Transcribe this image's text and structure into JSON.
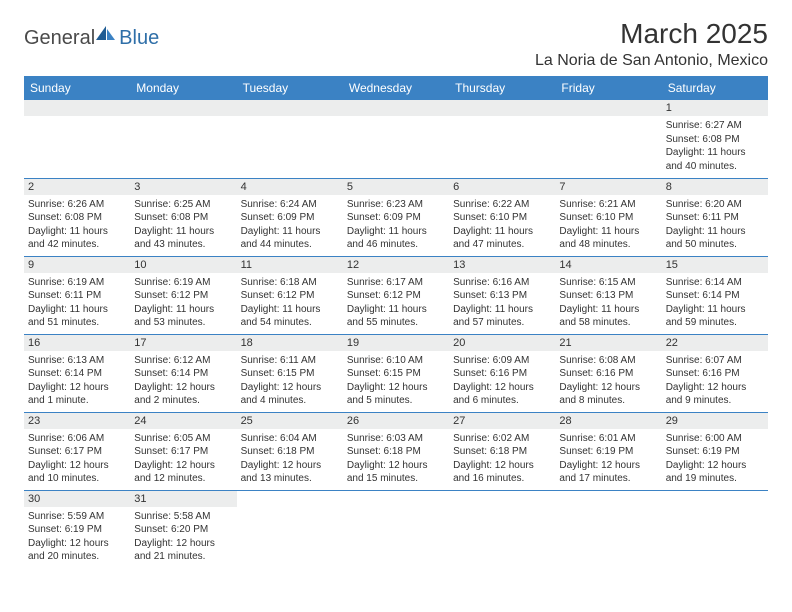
{
  "logo": {
    "general": "General",
    "blue": "Blue",
    "accent_color": "#2f6fa8",
    "sail_color": "#1f5c94"
  },
  "header": {
    "month": "March 2025",
    "location": "La Noria de San Antonio, Mexico"
  },
  "style": {
    "header_bg": "#3b82c4",
    "header_text": "#ffffff",
    "daynum_bg": "#eceded",
    "border_color": "#3b82c4"
  },
  "weekdays": [
    "Sunday",
    "Monday",
    "Tuesday",
    "Wednesday",
    "Thursday",
    "Friday",
    "Saturday"
  ],
  "days": {
    "1": {
      "sunrise": "Sunrise: 6:27 AM",
      "sunset": "Sunset: 6:08 PM",
      "daylight": "Daylight: 11 hours and 40 minutes."
    },
    "2": {
      "sunrise": "Sunrise: 6:26 AM",
      "sunset": "Sunset: 6:08 PM",
      "daylight": "Daylight: 11 hours and 42 minutes."
    },
    "3": {
      "sunrise": "Sunrise: 6:25 AM",
      "sunset": "Sunset: 6:08 PM",
      "daylight": "Daylight: 11 hours and 43 minutes."
    },
    "4": {
      "sunrise": "Sunrise: 6:24 AM",
      "sunset": "Sunset: 6:09 PM",
      "daylight": "Daylight: 11 hours and 44 minutes."
    },
    "5": {
      "sunrise": "Sunrise: 6:23 AM",
      "sunset": "Sunset: 6:09 PM",
      "daylight": "Daylight: 11 hours and 46 minutes."
    },
    "6": {
      "sunrise": "Sunrise: 6:22 AM",
      "sunset": "Sunset: 6:10 PM",
      "daylight": "Daylight: 11 hours and 47 minutes."
    },
    "7": {
      "sunrise": "Sunrise: 6:21 AM",
      "sunset": "Sunset: 6:10 PM",
      "daylight": "Daylight: 11 hours and 48 minutes."
    },
    "8": {
      "sunrise": "Sunrise: 6:20 AM",
      "sunset": "Sunset: 6:11 PM",
      "daylight": "Daylight: 11 hours and 50 minutes."
    },
    "9": {
      "sunrise": "Sunrise: 6:19 AM",
      "sunset": "Sunset: 6:11 PM",
      "daylight": "Daylight: 11 hours and 51 minutes."
    },
    "10": {
      "sunrise": "Sunrise: 6:19 AM",
      "sunset": "Sunset: 6:12 PM",
      "daylight": "Daylight: 11 hours and 53 minutes."
    },
    "11": {
      "sunrise": "Sunrise: 6:18 AM",
      "sunset": "Sunset: 6:12 PM",
      "daylight": "Daylight: 11 hours and 54 minutes."
    },
    "12": {
      "sunrise": "Sunrise: 6:17 AM",
      "sunset": "Sunset: 6:12 PM",
      "daylight": "Daylight: 11 hours and 55 minutes."
    },
    "13": {
      "sunrise": "Sunrise: 6:16 AM",
      "sunset": "Sunset: 6:13 PM",
      "daylight": "Daylight: 11 hours and 57 minutes."
    },
    "14": {
      "sunrise": "Sunrise: 6:15 AM",
      "sunset": "Sunset: 6:13 PM",
      "daylight": "Daylight: 11 hours and 58 minutes."
    },
    "15": {
      "sunrise": "Sunrise: 6:14 AM",
      "sunset": "Sunset: 6:14 PM",
      "daylight": "Daylight: 11 hours and 59 minutes."
    },
    "16": {
      "sunrise": "Sunrise: 6:13 AM",
      "sunset": "Sunset: 6:14 PM",
      "daylight": "Daylight: 12 hours and 1 minute."
    },
    "17": {
      "sunrise": "Sunrise: 6:12 AM",
      "sunset": "Sunset: 6:14 PM",
      "daylight": "Daylight: 12 hours and 2 minutes."
    },
    "18": {
      "sunrise": "Sunrise: 6:11 AM",
      "sunset": "Sunset: 6:15 PM",
      "daylight": "Daylight: 12 hours and 4 minutes."
    },
    "19": {
      "sunrise": "Sunrise: 6:10 AM",
      "sunset": "Sunset: 6:15 PM",
      "daylight": "Daylight: 12 hours and 5 minutes."
    },
    "20": {
      "sunrise": "Sunrise: 6:09 AM",
      "sunset": "Sunset: 6:16 PM",
      "daylight": "Daylight: 12 hours and 6 minutes."
    },
    "21": {
      "sunrise": "Sunrise: 6:08 AM",
      "sunset": "Sunset: 6:16 PM",
      "daylight": "Daylight: 12 hours and 8 minutes."
    },
    "22": {
      "sunrise": "Sunrise: 6:07 AM",
      "sunset": "Sunset: 6:16 PM",
      "daylight": "Daylight: 12 hours and 9 minutes."
    },
    "23": {
      "sunrise": "Sunrise: 6:06 AM",
      "sunset": "Sunset: 6:17 PM",
      "daylight": "Daylight: 12 hours and 10 minutes."
    },
    "24": {
      "sunrise": "Sunrise: 6:05 AM",
      "sunset": "Sunset: 6:17 PM",
      "daylight": "Daylight: 12 hours and 12 minutes."
    },
    "25": {
      "sunrise": "Sunrise: 6:04 AM",
      "sunset": "Sunset: 6:18 PM",
      "daylight": "Daylight: 12 hours and 13 minutes."
    },
    "26": {
      "sunrise": "Sunrise: 6:03 AM",
      "sunset": "Sunset: 6:18 PM",
      "daylight": "Daylight: 12 hours and 15 minutes."
    },
    "27": {
      "sunrise": "Sunrise: 6:02 AM",
      "sunset": "Sunset: 6:18 PM",
      "daylight": "Daylight: 12 hours and 16 minutes."
    },
    "28": {
      "sunrise": "Sunrise: 6:01 AM",
      "sunset": "Sunset: 6:19 PM",
      "daylight": "Daylight: 12 hours and 17 minutes."
    },
    "29": {
      "sunrise": "Sunrise: 6:00 AM",
      "sunset": "Sunset: 6:19 PM",
      "daylight": "Daylight: 12 hours and 19 minutes."
    },
    "30": {
      "sunrise": "Sunrise: 5:59 AM",
      "sunset": "Sunset: 6:19 PM",
      "daylight": "Daylight: 12 hours and 20 minutes."
    },
    "31": {
      "sunrise": "Sunrise: 5:58 AM",
      "sunset": "Sunset: 6:20 PM",
      "daylight": "Daylight: 12 hours and 21 minutes."
    }
  },
  "day_numbers": {
    "1": "1",
    "2": "2",
    "3": "3",
    "4": "4",
    "5": "5",
    "6": "6",
    "7": "7",
    "8": "8",
    "9": "9",
    "10": "10",
    "11": "11",
    "12": "12",
    "13": "13",
    "14": "14",
    "15": "15",
    "16": "16",
    "17": "17",
    "18": "18",
    "19": "19",
    "20": "20",
    "21": "21",
    "22": "22",
    "23": "23",
    "24": "24",
    "25": "25",
    "26": "26",
    "27": "27",
    "28": "28",
    "29": "29",
    "30": "30",
    "31": "31"
  }
}
